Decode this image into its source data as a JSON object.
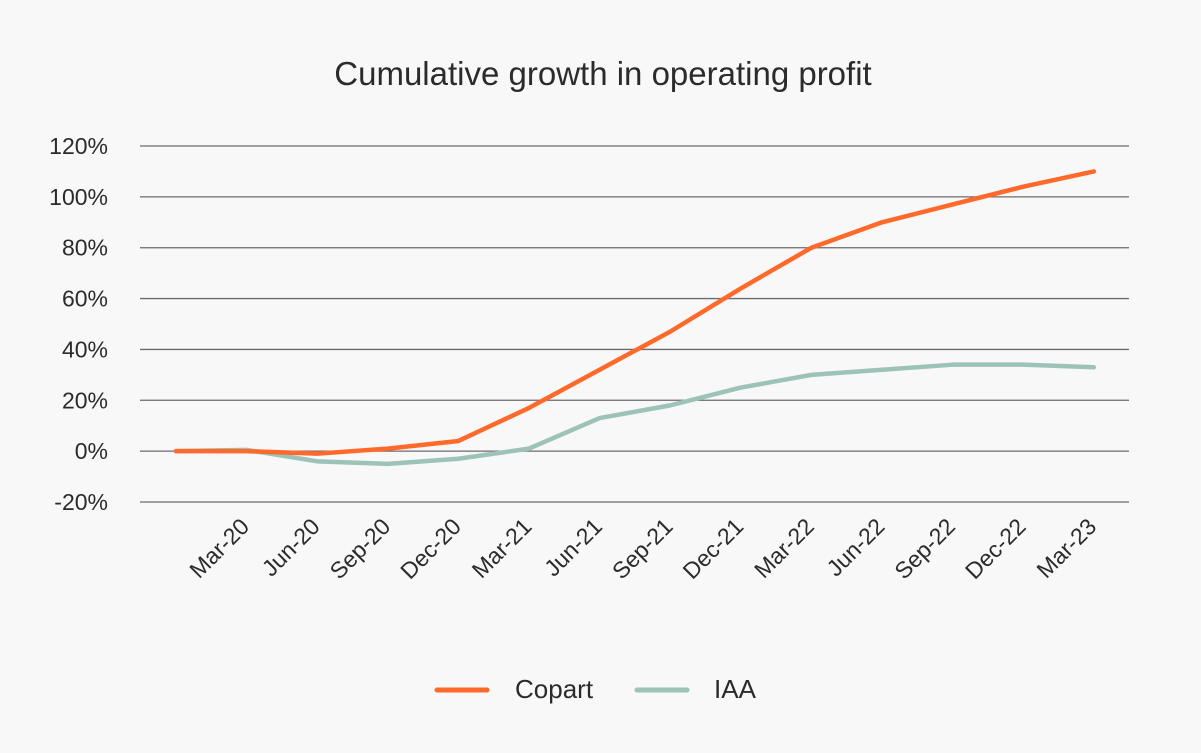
{
  "chart_data": {
    "type": "line",
    "title": "Cumulative growth in operating profit",
    "xlabel": "",
    "ylabel": "",
    "categories": [
      "",
      "Mar-20",
      "Jun-20",
      "Sep-20",
      "Dec-20",
      "Mar-21",
      "Jun-21",
      "Sep-21",
      "Dec-21",
      "Mar-22",
      "Jun-22",
      "Sep-22",
      "Dec-22",
      "Mar-23"
    ],
    "series": [
      {
        "name": "Copart",
        "color": "#ff6a2b",
        "values": [
          0,
          0,
          -1,
          1,
          4,
          17,
          32,
          47,
          64,
          80,
          90,
          97,
          104,
          110
        ]
      },
      {
        "name": "IAA",
        "color": "#9dc3b9",
        "values": [
          0,
          0.5,
          -4,
          -5,
          -3,
          1,
          13,
          18,
          25,
          30,
          32,
          34,
          34,
          33
        ]
      }
    ],
    "ylim": [
      -20,
      120
    ],
    "yticks": [
      -20,
      0,
      20,
      40,
      60,
      80,
      100,
      120
    ],
    "ytick_labels": [
      "-20%",
      "0%",
      "20%",
      "40%",
      "60%",
      "80%",
      "100%",
      "120%"
    ],
    "grid": true,
    "legend_position": "bottom"
  }
}
